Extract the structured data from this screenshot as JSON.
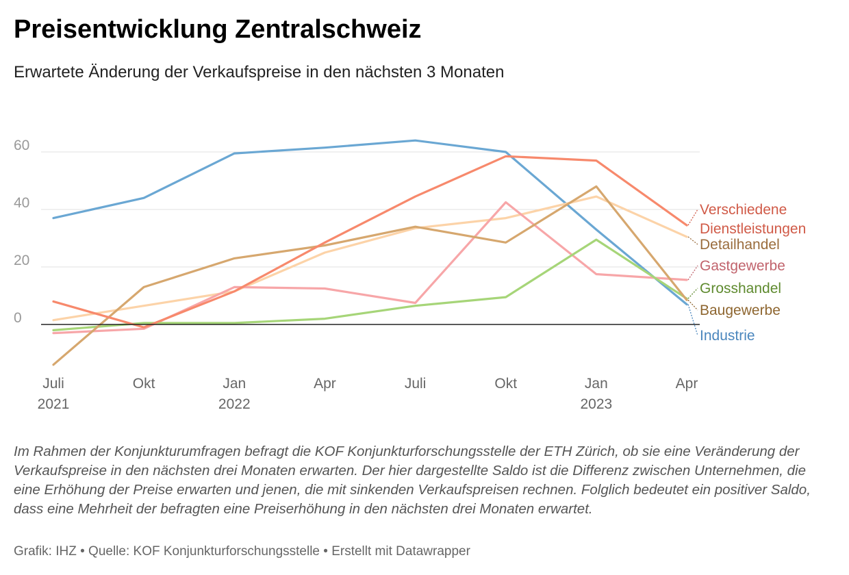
{
  "title": "Preisentwicklung Zentralschweiz",
  "subtitle": "Erwartete Änderung der Verkaufspreise in den nächsten 3 Monaten",
  "description": "Im Rahmen der Konjunkturumfragen befragt die KOF Konjunkturforschungsstelle der ETH Zürich, ob sie eine Veränderung der Verkaufspreise in den nächsten drei Monaten erwarten. Der hier dargestellte Saldo ist die Differenz zwischen Unternehmen, die eine Erhöhung der Preise erwarten und jenen, die mit sinkenden Verkaufspreisen rechnen. Folglich bedeutet ein positiver Saldo, dass eine Mehrheit der befragten eine Preiserhöhung in den nächsten drei Monaten erwartet.",
  "footer": "Grafik: IHZ • Quelle: KOF Konjunkturforschungsstelle • Erstellt mit Datawrapper",
  "chart_data": {
    "type": "line",
    "title": "Preisentwicklung Zentralschweiz",
    "subtitle": "Erwartete Änderung der Verkaufspreise in den nächsten 3 Monaten",
    "xlabel": "",
    "ylabel": "",
    "ylim": [
      -15,
      65
    ],
    "yticks": [
      0,
      20,
      40,
      60
    ],
    "grid": true,
    "legend": "direct labels at right end of lines",
    "x": [
      "2021-07",
      "2021-10",
      "2022-01",
      "2022-04",
      "2022-07",
      "2022-10",
      "2023-01",
      "2023-04"
    ],
    "x_tick_labels": [
      {
        "month": "Juli",
        "year": "2021"
      },
      {
        "month": "Okt",
        "year": ""
      },
      {
        "month": "Jan",
        "year": "2022"
      },
      {
        "month": "Apr",
        "year": ""
      },
      {
        "month": "Juli",
        "year": ""
      },
      {
        "month": "Okt",
        "year": ""
      },
      {
        "month": "Jan",
        "year": "2023"
      },
      {
        "month": "Apr",
        "year": ""
      }
    ],
    "series": [
      {
        "name": "Industrie",
        "label_lines": [
          "Industrie"
        ],
        "color": "#6aa7d3",
        "label_color": "#4a86bd",
        "values": [
          37,
          44,
          59.5,
          61.5,
          64,
          60,
          33,
          7
        ]
      },
      {
        "name": "Detailhandel",
        "label_lines": [
          "Detailhandel"
        ],
        "color": "#fcd3a8",
        "label_color": "#9a6c3c",
        "values": [
          1.5,
          6.5,
          11.5,
          25,
          33.5,
          37,
          44.5,
          30.5
        ]
      },
      {
        "name": "Gastgewerbe",
        "label_lines": [
          "Gastgewerbe"
        ],
        "color": "#f7a6a8",
        "label_color": "#c1636c",
        "values": [
          -3,
          -1.5,
          13,
          12.5,
          7.5,
          42.5,
          17.5,
          15.5
        ]
      },
      {
        "name": "Grosshandel",
        "label_lines": [
          "Grosshandel"
        ],
        "color": "#a6d578",
        "label_color": "#5e8a2e",
        "values": [
          -2,
          0.5,
          0.5,
          2,
          6.5,
          9.5,
          29.5,
          9
        ]
      },
      {
        "name": "Baugewerbe",
        "label_lines": [
          "Baugewerbe"
        ],
        "color": "#d6a76e",
        "label_color": "#8e6630",
        "values": [
          -14,
          13,
          23,
          27.5,
          34,
          28.5,
          48,
          8.5
        ]
      },
      {
        "name": "Verschiedene Dienstleistungen",
        "label_lines": [
          "Verschiedene",
          "Dienstleistungen"
        ],
        "color": "#f7896c",
        "label_color": "#d05a47",
        "values": [
          8,
          -1,
          11.5,
          28.5,
          44.5,
          58.5,
          57,
          34.5
        ]
      }
    ]
  }
}
